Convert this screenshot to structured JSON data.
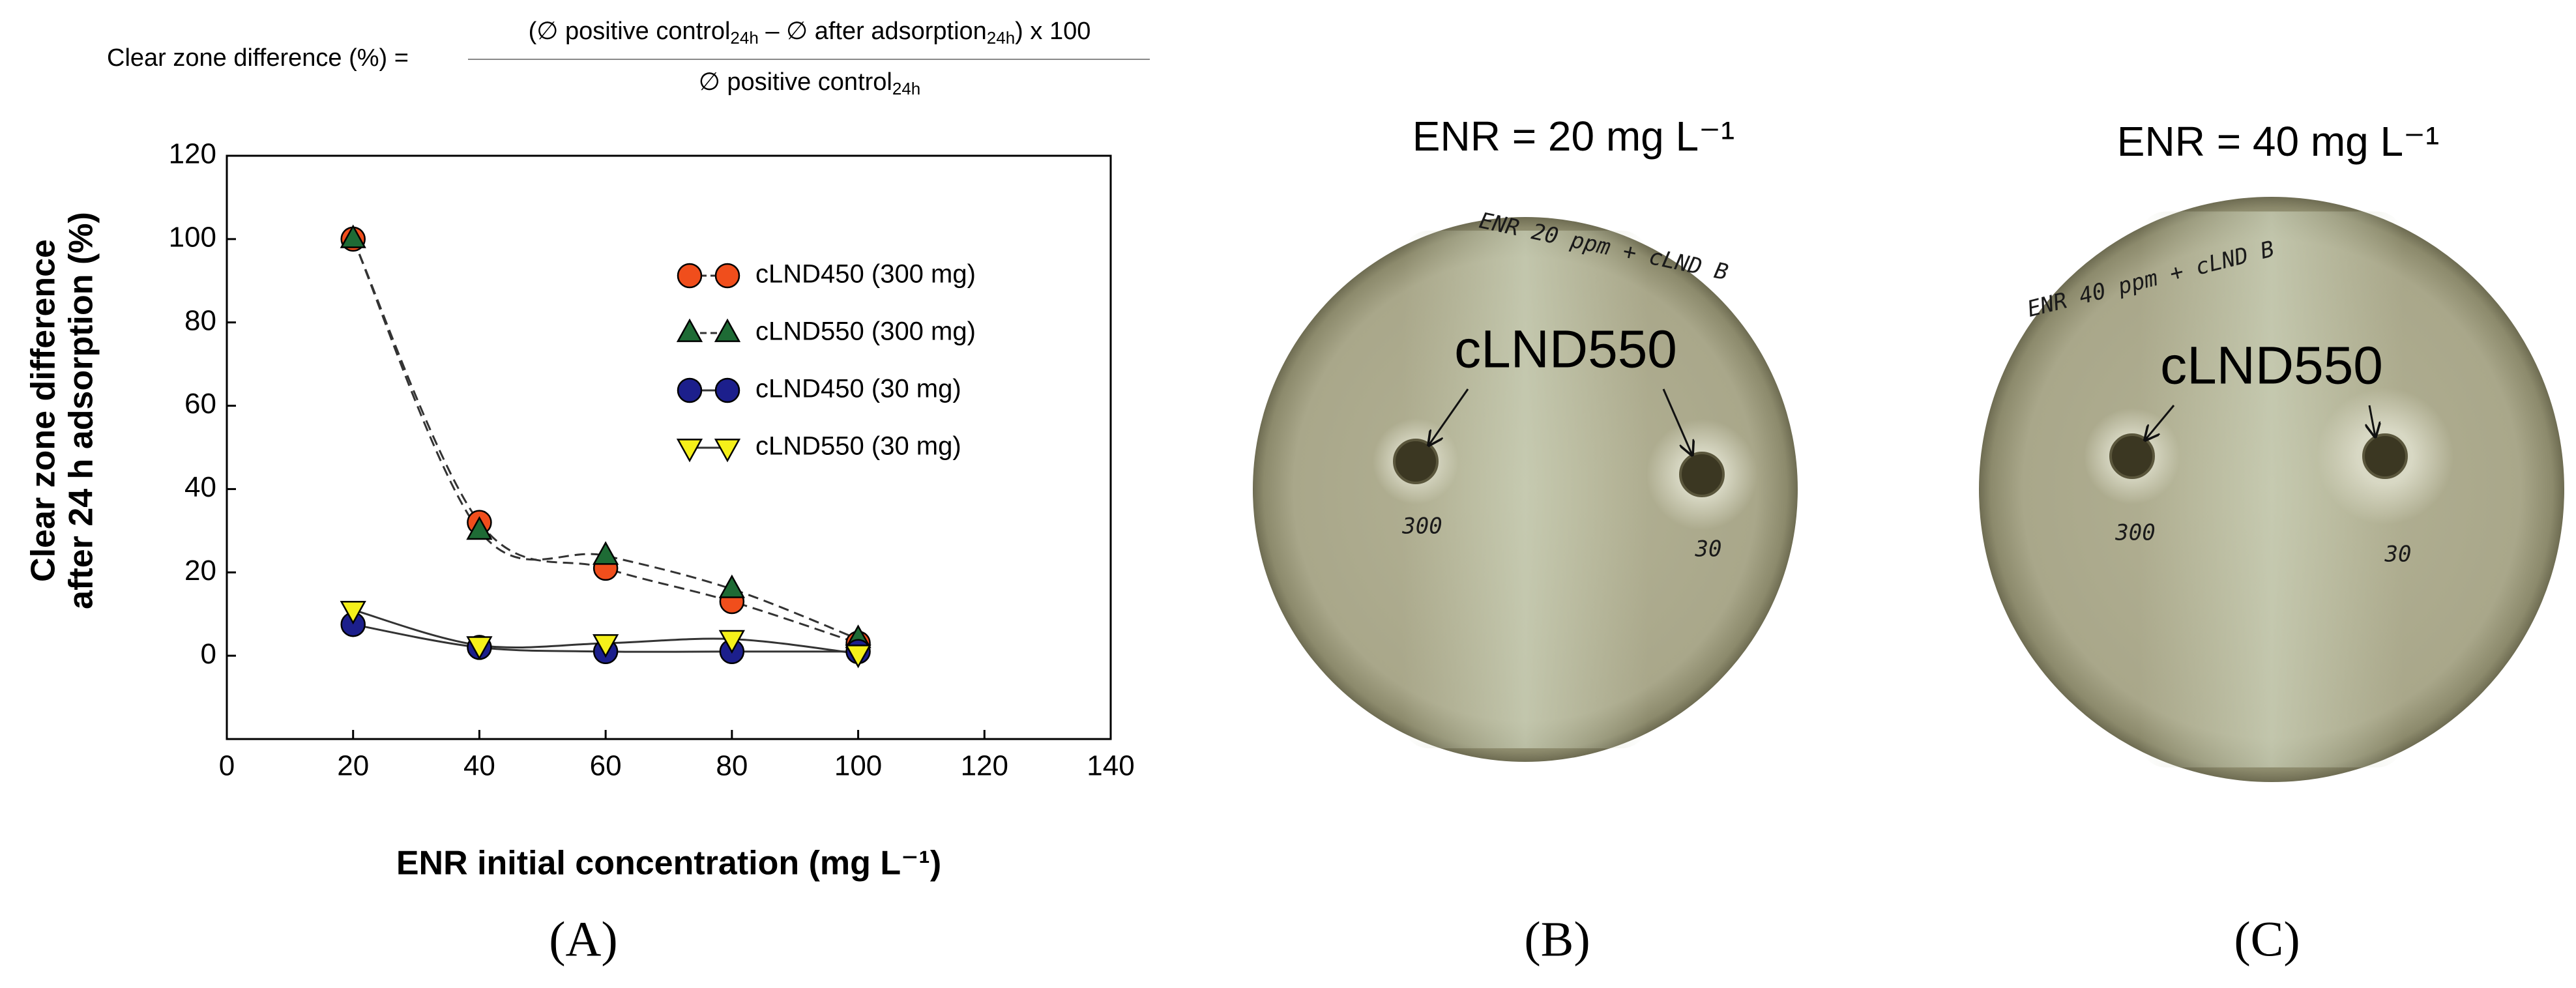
{
  "formula": {
    "lhs": "Clear zone difference (%) =",
    "numerator": [
      "(∅ positive control",
      "24h",
      " – ∅ after adsorption",
      "24h",
      ") x 100"
    ],
    "denominator": [
      "∅ positive control",
      "24h"
    ]
  },
  "chart_data": {
    "type": "line",
    "y_label": [
      "Clear zone difference",
      "after 24 h adsorption (%)"
    ],
    "x_label": "ENR initial concentration (mg L⁻¹)",
    "x": [
      20,
      40,
      60,
      80,
      100
    ],
    "xlim": [
      0,
      140
    ],
    "xticks": [
      0,
      20,
      40,
      60,
      80,
      100,
      120,
      140
    ],
    "ylim": [
      -20,
      120
    ],
    "yticks": [
      0,
      20,
      40,
      60,
      80,
      100,
      120
    ],
    "series": [
      {
        "name": "cLND450 (300 mg)",
        "color": "#f04e1c",
        "marker": "circle",
        "linestyle": "dashed",
        "values": [
          100,
          32,
          21,
          13,
          3
        ]
      },
      {
        "name": "cLND550 (300 mg)",
        "color": "#1e6b35",
        "marker": "triangle",
        "linestyle": "dashed",
        "values": [
          100,
          30,
          24,
          16,
          4
        ]
      },
      {
        "name": "cLND450 (30 mg)",
        "color": "#1c1f8c",
        "marker": "circle",
        "linestyle": "solid",
        "values": [
          7.5,
          2,
          1,
          1,
          1
        ]
      },
      {
        "name": "cLND550 (30 mg)",
        "color": "#f5f01a",
        "marker": "triangle-down",
        "linestyle": "solid",
        "values": [
          11,
          2.5,
          3,
          4,
          0.5
        ]
      }
    ]
  },
  "photos": [
    {
      "title": "ENR = 20 mg L⁻¹",
      "label": "cLND550",
      "handwriting": "ENR 20 ppm + cLND B",
      "left_mark": "300",
      "right_mark": "30"
    },
    {
      "title": "ENR = 40 mg L⁻¹",
      "label": "cLND550",
      "handwriting": "ENR 40 ppm + cLND B",
      "left_mark": "300",
      "right_mark": "30"
    }
  ],
  "panel_labels": [
    "(A)",
    "(B)",
    "(C)"
  ]
}
